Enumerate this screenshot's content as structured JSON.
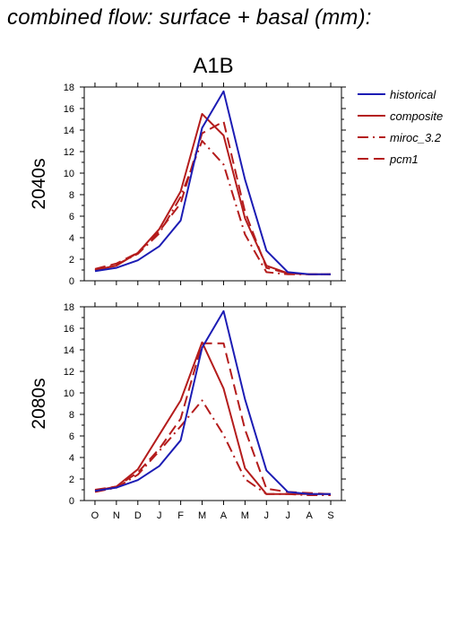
{
  "title": "combined flow: surface + basal (mm):",
  "chart_data": {
    "type": "line",
    "scenario": "A1B",
    "x_categories": [
      "O",
      "N",
      "D",
      "J",
      "F",
      "M",
      "A",
      "M",
      "J",
      "J",
      "A",
      "S"
    ],
    "ylim": [
      0,
      18
    ],
    "yticks": [
      0,
      2,
      4,
      6,
      8,
      10,
      12,
      14,
      16,
      18
    ],
    "legend": {
      "placement": "top-right, outside plot",
      "entries": [
        {
          "name": "historical",
          "color": "#1c1cb4",
          "dash": "solid"
        },
        {
          "name": "composite",
          "color": "#b41c1c",
          "dash": "solid"
        },
        {
          "name": "miroc_3.2",
          "color": "#b41c1c",
          "dash": "dashdot"
        },
        {
          "name": "pcm1",
          "color": "#b41c1c",
          "dash": "dashed"
        }
      ]
    },
    "panels": [
      {
        "period": "2040s",
        "series": [
          {
            "name": "historical",
            "values": [
              0.9,
              1.2,
              1.9,
              3.2,
              5.6,
              14.2,
              17.6,
              9.4,
              2.8,
              0.8,
              0.6,
              0.6
            ]
          },
          {
            "name": "composite",
            "values": [
              1.0,
              1.4,
              2.6,
              4.8,
              8.3,
              15.5,
              13.5,
              5.8,
              1.4,
              0.7,
              0.6,
              0.6
            ]
          },
          {
            "name": "miroc_3.2",
            "values": [
              1.0,
              1.5,
              2.5,
              4.4,
              7.8,
              13.0,
              10.8,
              4.3,
              0.8,
              0.6,
              0.6,
              0.6
            ]
          },
          {
            "name": "pcm1",
            "values": [
              1.1,
              1.6,
              2.6,
              4.6,
              7.2,
              13.7,
              14.8,
              6.4,
              1.2,
              0.7,
              0.6,
              0.6
            ]
          }
        ]
      },
      {
        "period": "2080s",
        "series": [
          {
            "name": "historical",
            "values": [
              0.9,
              1.2,
              1.9,
              3.2,
              5.6,
              14.2,
              17.6,
              9.4,
              2.8,
              0.8,
              0.6,
              0.6
            ]
          },
          {
            "name": "composite",
            "values": [
              0.9,
              1.3,
              2.9,
              6.1,
              9.3,
              14.7,
              10.4,
              3.0,
              0.6,
              0.6,
              0.6,
              0.6
            ]
          },
          {
            "name": "miroc_3.2",
            "values": [
              0.8,
              1.2,
              2.4,
              4.6,
              6.9,
              9.3,
              6.1,
              2.0,
              0.6,
              0.6,
              0.5,
              0.5
            ]
          },
          {
            "name": "pcm1",
            "values": [
              1.0,
              1.3,
              2.6,
              4.8,
              7.6,
              14.6,
              14.6,
              6.6,
              1.1,
              0.8,
              0.7,
              0.6
            ]
          }
        ]
      }
    ]
  }
}
